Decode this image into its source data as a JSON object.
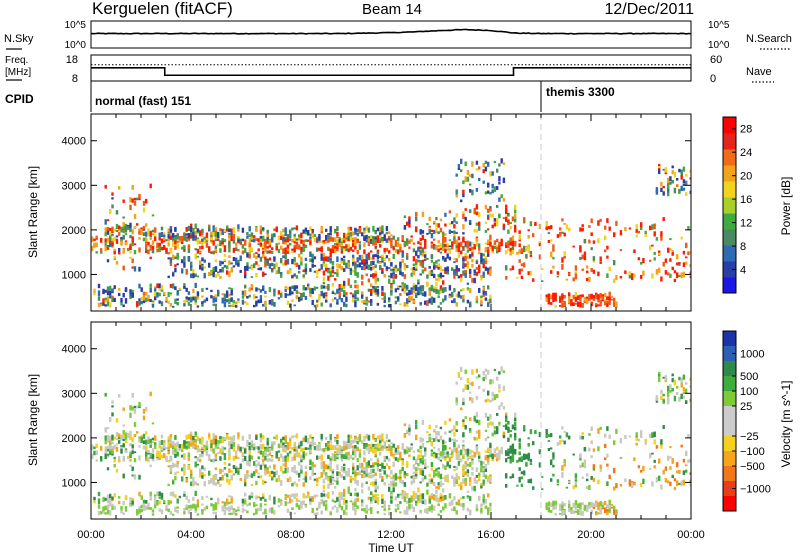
{
  "header": {
    "station": "Kerguelen (fitACF)",
    "beam": "Beam 14",
    "date": "12/Dec/2011"
  },
  "noise_panel": {
    "left_label": "N.Sky",
    "right_label": "N.Search",
    "left_ticks": [
      "10^5",
      "10^0"
    ],
    "right_ticks": [
      "10^5",
      "10^0"
    ]
  },
  "freq_panel": {
    "left_label_1": "Freq.",
    "left_label_2": "[MHz]",
    "right_label": "Nave",
    "left_ticks": [
      "18",
      "8"
    ],
    "right_ticks": [
      "60",
      "0"
    ]
  },
  "cpid_panel": {
    "label": "CPID",
    "modes": [
      {
        "name": "normal (fast) 151",
        "start_hour": 0
      },
      {
        "name": "themis 3300",
        "start_hour": 18
      }
    ]
  },
  "power_panel": {
    "ylabel": "Slant Range [km]",
    "yticks": [
      "1000",
      "2000",
      "3000",
      "4000"
    ],
    "colorbar_label": "Power [dB]",
    "colorbar_ticks": [
      "4",
      "8",
      "12",
      "16",
      "20",
      "24",
      "28"
    ]
  },
  "velocity_panel": {
    "ylabel": "Slant Range [km]",
    "yticks": [
      "1000",
      "2000",
      "3000",
      "4000"
    ],
    "colorbar_label": "Velocity [m s^-1]",
    "colorbar_ticks": [
      "1000",
      "500",
      "100",
      "25",
      "−25",
      "−100",
      "−500",
      "−1000"
    ]
  },
  "xaxis": {
    "label": "Time UT",
    "ticks": [
      "00:00",
      "04:00",
      "08:00",
      "12:00",
      "16:00",
      "20:00",
      "00:00"
    ]
  },
  "chart_data": [
    {
      "type": "line",
      "name": "noise",
      "series": [
        {
          "name": "N.Sky",
          "x_hours": [
            0,
            2,
            4,
            6,
            8,
            10,
            12,
            13,
            14,
            15,
            16,
            17,
            18,
            20,
            22,
            24
          ],
          "values_log10": [
            2.6,
            2.6,
            2.6,
            2.6,
            2.6,
            2.6,
            2.8,
            3.0,
            3.3,
            3.5,
            3.3,
            2.7,
            2.6,
            2.6,
            2.6,
            2.6
          ]
        }
      ]
    },
    {
      "type": "line",
      "name": "frequency",
      "series": [
        {
          "name": "Freq.",
          "x_hours": [
            0,
            2.95,
            2.95,
            16.9,
            16.9,
            24
          ],
          "values": [
            14.4,
            14.4,
            10.5,
            10.5,
            14.4,
            14.4
          ]
        },
        {
          "name": "Nave",
          "x_hours": [
            0,
            24
          ],
          "values": [
            48,
            48
          ]
        }
      ]
    },
    {
      "type": "heatmap",
      "name": "power",
      "xlim_hours": [
        0,
        24
      ],
      "ylim_km": [
        180,
        4600
      ],
      "colorbar_range_db": [
        0,
        30
      ]
    },
    {
      "type": "heatmap",
      "name": "velocity",
      "xlim_hours": [
        0,
        24
      ],
      "ylim_km": [
        180,
        4600
      ],
      "colorbar_range_ms": [
        -1000,
        1000
      ]
    }
  ]
}
